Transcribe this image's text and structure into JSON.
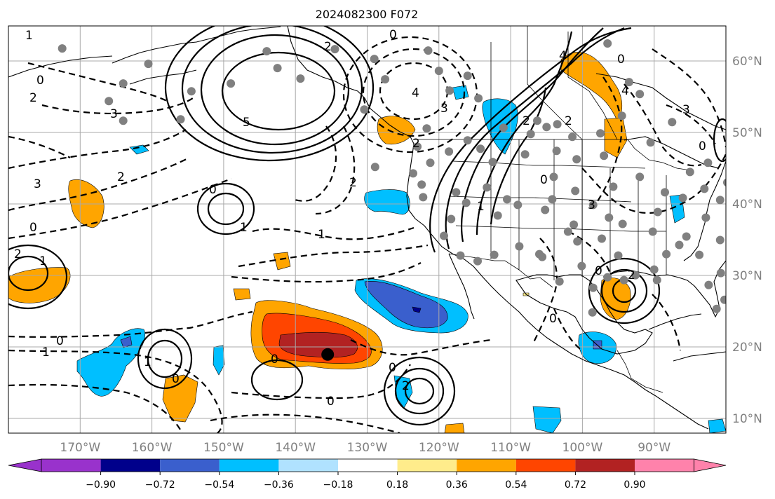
{
  "title": "2024082300 F072",
  "map": {
    "projection": "lat-lon",
    "lon_range": [
      -180,
      -80
    ],
    "lat_range": [
      8,
      66
    ],
    "lon_ticks": [
      "170°W",
      "160°W",
      "150°W",
      "140°W",
      "130°W",
      "120°W",
      "110°W",
      "100°W",
      "90°W"
    ],
    "lat_ticks": [
      "60°N",
      "50°N",
      "40°N",
      "30°N",
      "20°N",
      "10°N"
    ],
    "grid": true
  },
  "colorbar": {
    "extend": "both",
    "colors": [
      "#9932CC",
      "#00008B",
      "#3A5FCD",
      "#00BFFF",
      "#B0E2FF",
      "#FFFFFF",
      "#FFEC8B",
      "#FFA500",
      "#FF4500",
      "#B22222",
      "#FF82AB"
    ],
    "tick_labels": [
      "−0.90",
      "−0.72",
      "−0.54",
      "−0.36",
      "−0.18",
      "0.18",
      "0.36",
      "0.54",
      "0.72",
      "0.90"
    ]
  },
  "contour_labels": [
    {
      "id": "c1",
      "text": "1"
    },
    {
      "id": "c2",
      "text": "0"
    },
    {
      "id": "c3",
      "text": "2"
    },
    {
      "id": "c4",
      "text": "3"
    },
    {
      "id": "c5",
      "text": "5"
    },
    {
      "id": "c6",
      "text": "2"
    },
    {
      "id": "c7",
      "text": "0"
    },
    {
      "id": "c8",
      "text": "3"
    },
    {
      "id": "c9",
      "text": "2"
    },
    {
      "id": "c10",
      "text": "0"
    },
    {
      "id": "c11",
      "text": "1"
    },
    {
      "id": "c12",
      "text": "1"
    },
    {
      "id": "c13",
      "text": "0"
    },
    {
      "id": "c14",
      "text": "2"
    },
    {
      "id": "c15",
      "text": "1"
    },
    {
      "id": "c16",
      "text": "0"
    },
    {
      "id": "c17",
      "text": "1"
    },
    {
      "id": "c18",
      "text": "1"
    },
    {
      "id": "c19",
      "text": "0"
    },
    {
      "id": "c20",
      "text": "0"
    },
    {
      "id": "c21",
      "text": "2"
    },
    {
      "id": "c22",
      "text": "0"
    },
    {
      "id": "c23",
      "text": "4"
    },
    {
      "id": "c24",
      "text": "3"
    },
    {
      "id": "c25",
      "text": "2"
    },
    {
      "id": "c26",
      "text": "4"
    },
    {
      "id": "c27",
      "text": "0"
    },
    {
      "id": "c28",
      "text": "2"
    },
    {
      "id": "c29",
      "text": "0"
    },
    {
      "id": "c30",
      "text": "3"
    },
    {
      "id": "c31",
      "text": "2"
    },
    {
      "id": "c32",
      "text": "0"
    },
    {
      "id": "c33",
      "text": "4"
    },
    {
      "id": "c34",
      "text": "3"
    },
    {
      "id": "c35",
      "text": "1"
    },
    {
      "id": "c36",
      "text": "2"
    },
    {
      "id": "c37",
      "text": "0"
    },
    {
      "id": "c38",
      "text": "0"
    },
    {
      "id": "c39",
      "text": "2"
    },
    {
      "id": "c40",
      "text": "0"
    }
  ],
  "markers": {
    "center_marker": {
      "lon": -135.5,
      "lat": 19.2,
      "color": "#000000"
    },
    "station_color": "#808080",
    "stations": [
      [
        -172.5,
        62.8
      ],
      [
        -144,
        62.4
      ],
      [
        -160.5,
        60.6
      ],
      [
        -164,
        57.8
      ],
      [
        -164,
        52.5
      ],
      [
        -156,
        52.7
      ],
      [
        -149,
        57.8
      ],
      [
        -166,
        55.3
      ],
      [
        -129,
        61.3
      ],
      [
        -134.5,
        62.7
      ],
      [
        -121.5,
        62.5
      ],
      [
        -116,
        58.9
      ],
      [
        -118.5,
        56.8
      ],
      [
        -114.5,
        55.7
      ],
      [
        -111,
        51.5
      ],
      [
        -105,
        51.6
      ],
      [
        -103.5,
        52
      ],
      [
        -106.3,
        52.5
      ],
      [
        -101.4,
        50.2
      ],
      [
        -97.5,
        50.7
      ],
      [
        -94.5,
        53.2
      ],
      [
        -96.5,
        63.5
      ],
      [
        -93.5,
        58
      ],
      [
        -92,
        56.3
      ],
      [
        -87.5,
        52.3
      ],
      [
        -120,
        59.6
      ],
      [
        -116,
        49.7
      ],
      [
        -121.7,
        51.4
      ],
      [
        -123,
        48.8
      ],
      [
        -123.6,
        45
      ],
      [
        -122.4,
        43.4
      ],
      [
        -122.2,
        41.6
      ],
      [
        -113.3,
        43
      ],
      [
        -117.6,
        42.3
      ],
      [
        -112.5,
        46.6
      ],
      [
        -114.2,
        48.5
      ],
      [
        -110.5,
        41.3
      ],
      [
        -116.2,
        40.8
      ],
      [
        -111.8,
        39
      ],
      [
        -109,
        40.5
      ],
      [
        -105.2,
        39.8
      ],
      [
        -104.2,
        41.3
      ],
      [
        -104,
        44.5
      ],
      [
        -101,
        42.5
      ],
      [
        -98.5,
        40.5
      ],
      [
        -96.3,
        38.7
      ],
      [
        -95.7,
        43.1
      ],
      [
        -92,
        44.5
      ],
      [
        -88.5,
        42.3
      ],
      [
        -86,
        41.5
      ],
      [
        -89.5,
        39.5
      ],
      [
        -83,
        42.8
      ],
      [
        -79.8,
        43.7
      ],
      [
        -80.8,
        41.2
      ],
      [
        -82.8,
        38.7
      ],
      [
        -85.5,
        36
      ],
      [
        -88.3,
        33.5
      ],
      [
        -83.7,
        33.4
      ],
      [
        -80.8,
        35.5
      ],
      [
        -78.5,
        36.8
      ],
      [
        -75.8,
        39
      ],
      [
        -79.3,
        31.8
      ],
      [
        -80.7,
        30.8
      ],
      [
        -82.4,
        29.1
      ],
      [
        -81.3,
        25.7
      ],
      [
        -80.2,
        27
      ],
      [
        -86.5,
        34.8
      ],
      [
        -94.4,
        37.8
      ],
      [
        -97.3,
        35.7
      ],
      [
        -100.1,
        31.8
      ],
      [
        -96.5,
        30.2
      ],
      [
        -98.5,
        28.7
      ],
      [
        -103.2,
        29.6
      ],
      [
        -105.6,
        33.1
      ],
      [
        -108.8,
        34.6
      ],
      [
        -112.3,
        33.4
      ],
      [
        -114.6,
        32.5
      ],
      [
        -117,
        33.3
      ],
      [
        -119.3,
        36.1
      ],
      [
        -118.3,
        38.5
      ],
      [
        -100.7,
        35.3
      ],
      [
        -102,
        36.7
      ],
      [
        -106,
        33.5
      ],
      [
        -101.2,
        37.7
      ],
      [
        -90.2,
        36.7
      ],
      [
        -92.6,
        30.5
      ],
      [
        -94.2,
        29.8
      ],
      [
        -90,
        31.3
      ],
      [
        -89.6,
        29.8
      ],
      [
        -95,
        33.3
      ],
      [
        -98.6,
        25.2
      ],
      [
        -128.9,
        45.9
      ],
      [
        -121.2,
        46.5
      ],
      [
        -154.5,
        56.7
      ],
      [
        -142.5,
        60
      ],
      [
        -139.3,
        58.5
      ],
      [
        -127.5,
        58.4
      ],
      [
        -130.4,
        54.1
      ],
      [
        -118.6,
        48.1
      ],
      [
        -107.2,
        50.6
      ],
      [
        -90.5,
        49.4
      ],
      [
        -85,
        45.2
      ],
      [
        -78,
        44
      ],
      [
        -82.5,
        46.5
      ],
      [
        -97,
        47.5
      ],
      [
        -100.8,
        47
      ],
      [
        -103.6,
        48.2
      ],
      [
        -108,
        47.7
      ]
    ]
  }
}
